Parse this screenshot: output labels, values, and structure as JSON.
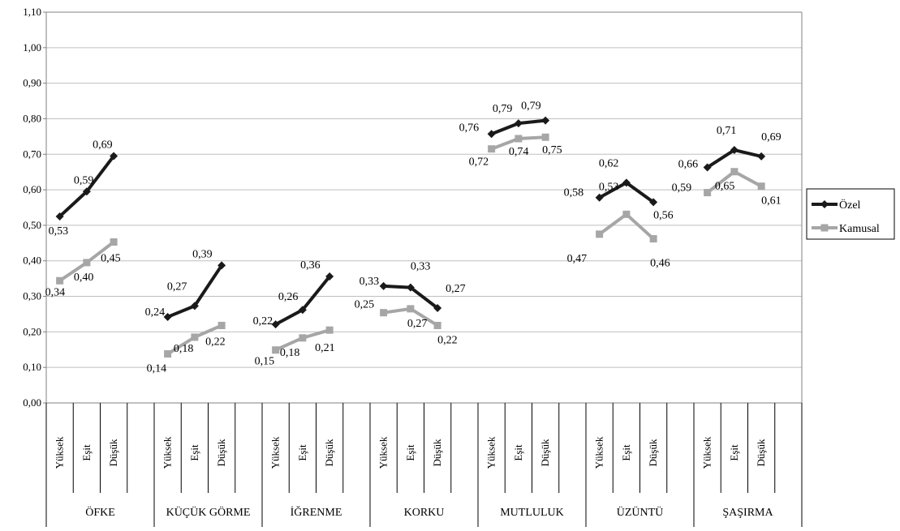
{
  "chart_data": {
    "type": "line",
    "title": "",
    "xlabel": "",
    "ylabel": "",
    "ylim": [
      0,
      1.1
    ],
    "yticks": [
      "0,00",
      "0,10",
      "0,20",
      "0,30",
      "0,40",
      "0,50",
      "0,60",
      "0,70",
      "0,80",
      "0,90",
      "1,00",
      "1,10"
    ],
    "grid": "horizontal",
    "legend_position": "right",
    "groups": [
      "ÖFKE",
      "KÜÇÜK GÖRME",
      "İĞRENME",
      "KORKU",
      "MUTLULUK",
      "ÜZÜNTÜ",
      "ŞAŞIRMA"
    ],
    "subcategories": [
      "Yüksek",
      "Eşit",
      "Düşük"
    ],
    "series": [
      {
        "name": "Özel",
        "color": "#1a1a1a",
        "marker": "diamond",
        "values": [
          [
            0.525,
            0.595,
            0.695
          ],
          [
            0.242,
            0.273,
            0.387
          ],
          [
            0.221,
            0.262,
            0.356
          ],
          [
            0.329,
            0.325,
            0.267
          ],
          [
            0.757,
            0.787,
            0.795
          ],
          [
            0.578,
            0.62,
            0.565
          ],
          [
            0.663,
            0.712,
            0.694
          ]
        ],
        "labels": [
          [
            "0,53",
            "0,59",
            "0,69"
          ],
          [
            "0,24",
            "0,27",
            "0,39"
          ],
          [
            "0,22",
            "0,26",
            "0,36"
          ],
          [
            "0,33",
            "0,33",
            "0,27"
          ],
          [
            "0,76",
            "0,79",
            "0,79"
          ],
          [
            "0,58",
            "0,62",
            "0,56"
          ],
          [
            "0,66",
            "0,71",
            "0,69"
          ]
        ]
      },
      {
        "name": "Kamusal",
        "color": "#a6a6a6",
        "marker": "square",
        "values": [
          [
            0.344,
            0.395,
            0.453
          ],
          [
            0.138,
            0.185,
            0.218
          ],
          [
            0.149,
            0.183,
            0.205
          ],
          [
            0.254,
            0.265,
            0.218
          ],
          [
            0.715,
            0.744,
            0.748
          ],
          [
            0.475,
            0.531,
            0.462
          ],
          [
            0.592,
            0.651,
            0.61
          ]
        ],
        "labels": [
          [
            "0,34",
            "0,40",
            "0,45"
          ],
          [
            "0,14",
            "0,18",
            "0,22"
          ],
          [
            "0,15",
            "0,18",
            "0,21"
          ],
          [
            "0,25",
            "0,27",
            "0,22"
          ],
          [
            "0,72",
            "0,74",
            "0,75"
          ],
          [
            "0,47",
            "0,53",
            "0,46"
          ],
          [
            "0,59",
            "0,65",
            "0,61"
          ]
        ]
      }
    ]
  }
}
